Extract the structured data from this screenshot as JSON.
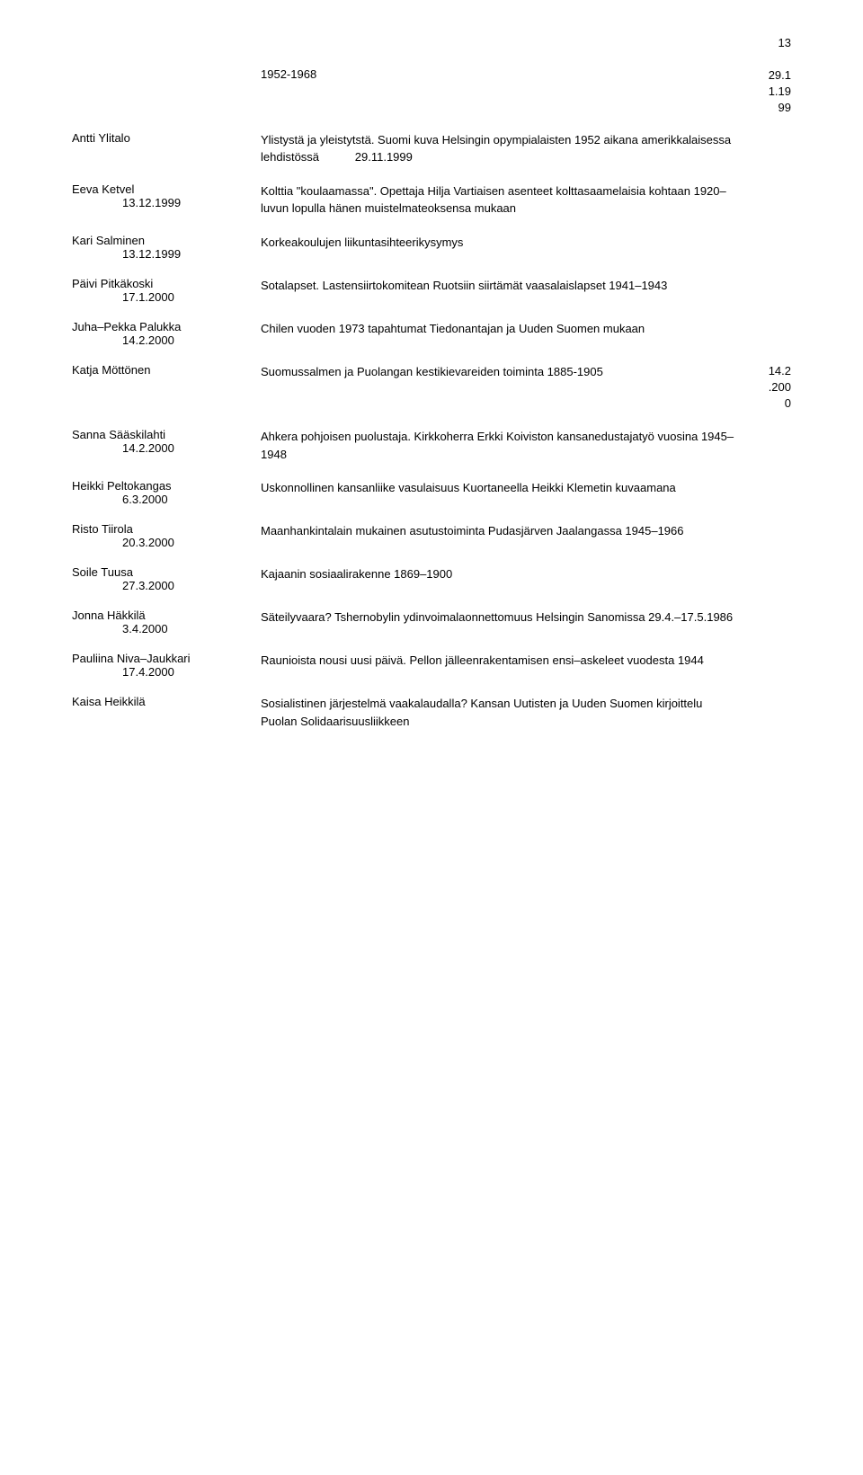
{
  "page_number": "13",
  "top_year_range": "1952-1968",
  "top_side_stack": [
    "29.1",
    "1.19",
    "99"
  ],
  "entries": [
    {
      "name": "Antti Ylitalo",
      "date": "",
      "desc": "Ylistystä ja yleistytstä. Suomi kuva Helsingin opympialaisten 1952 aikana amerikkalaisessa lehdistössä",
      "desc_date": "29.11.1999"
    },
    {
      "name": "Eeva Ketvel",
      "date": "13.12.1999",
      "desc": "Kolttia \"koulaamassa\". Opettaja Hilja Vartiaisen asenteet kolttasaamelaisia kohtaan 1920–luvun lopulla hänen muistelmateoksensa mukaan",
      "desc_date": ""
    },
    {
      "name": "Kari Salminen",
      "date": "13.12.1999",
      "desc": "Korkeakoulujen liikuntasihteerikysymys",
      "desc_date": ""
    },
    {
      "name": "Päivi Pitkäkoski",
      "date": "17.1.2000",
      "desc": "Sotalapset. Lastensiirtokomitean Ruotsiin siirtämät vaasalaislapset 1941–1943",
      "desc_date": ""
    },
    {
      "name": "Juha–Pekka Palukka",
      "date": "14.2.2000",
      "desc": "Chilen vuoden 1973 tapahtumat Tiedonantajan ja Uuden Suomen mukaan",
      "desc_date": ""
    },
    {
      "name": "Katja Möttönen",
      "date": "",
      "desc": "Suomussalmen ja Puolangan kestikievareiden toiminta 1885-1905",
      "desc_date": "",
      "side_stack": [
        "14.2",
        ".200",
        "0"
      ]
    },
    {
      "name": "Sanna Sääskilahti",
      "date": "14.2.2000",
      "desc": "Ahkera pohjoisen puolustaja. Kirkkoherra Erkki Koiviston kansanedustajatyö vuosina 1945–1948",
      "desc_date": ""
    },
    {
      "name": "Heikki Peltokangas",
      "date": "6.3.2000",
      "desc": "Uskonnollinen kansanliike vasulaisuus Kuortaneella Heikki Klemetin kuvaamana",
      "desc_date": ""
    },
    {
      "name": "Risto Tiirola",
      "date": "20.3.2000",
      "desc": "Maanhankintalain mukainen asutustoiminta Pudasjärven Jaalangassa 1945–1966",
      "desc_date": ""
    },
    {
      "name": "Soile Tuusa",
      "date": "27.3.2000",
      "desc": "Kajaanin sosiaalirakenne 1869–1900",
      "desc_date": ""
    },
    {
      "name": "Jonna Häkkilä",
      "date": "3.4.2000",
      "desc": "Säteilyvaara? Tshernobylin ydinvoimalaonnettomuus Helsingin Sanomissa 29.4.–17.5.1986",
      "desc_date": ""
    },
    {
      "name": "Pauliina Niva–Jaukkari",
      "date": "17.4.2000",
      "desc": "Raunioista nousi uusi päivä. Pellon jälleenrakentamisen ensi–askeleet vuodesta 1944",
      "desc_date": ""
    },
    {
      "name": "Kaisa Heikkilä",
      "date": "",
      "desc": "Sosialistinen järjestelmä vaakalaudalla? Kansan Uutisten ja Uuden Suomen kirjoittelu Puolan Solidaarisuusliikkeen",
      "desc_date": ""
    }
  ]
}
